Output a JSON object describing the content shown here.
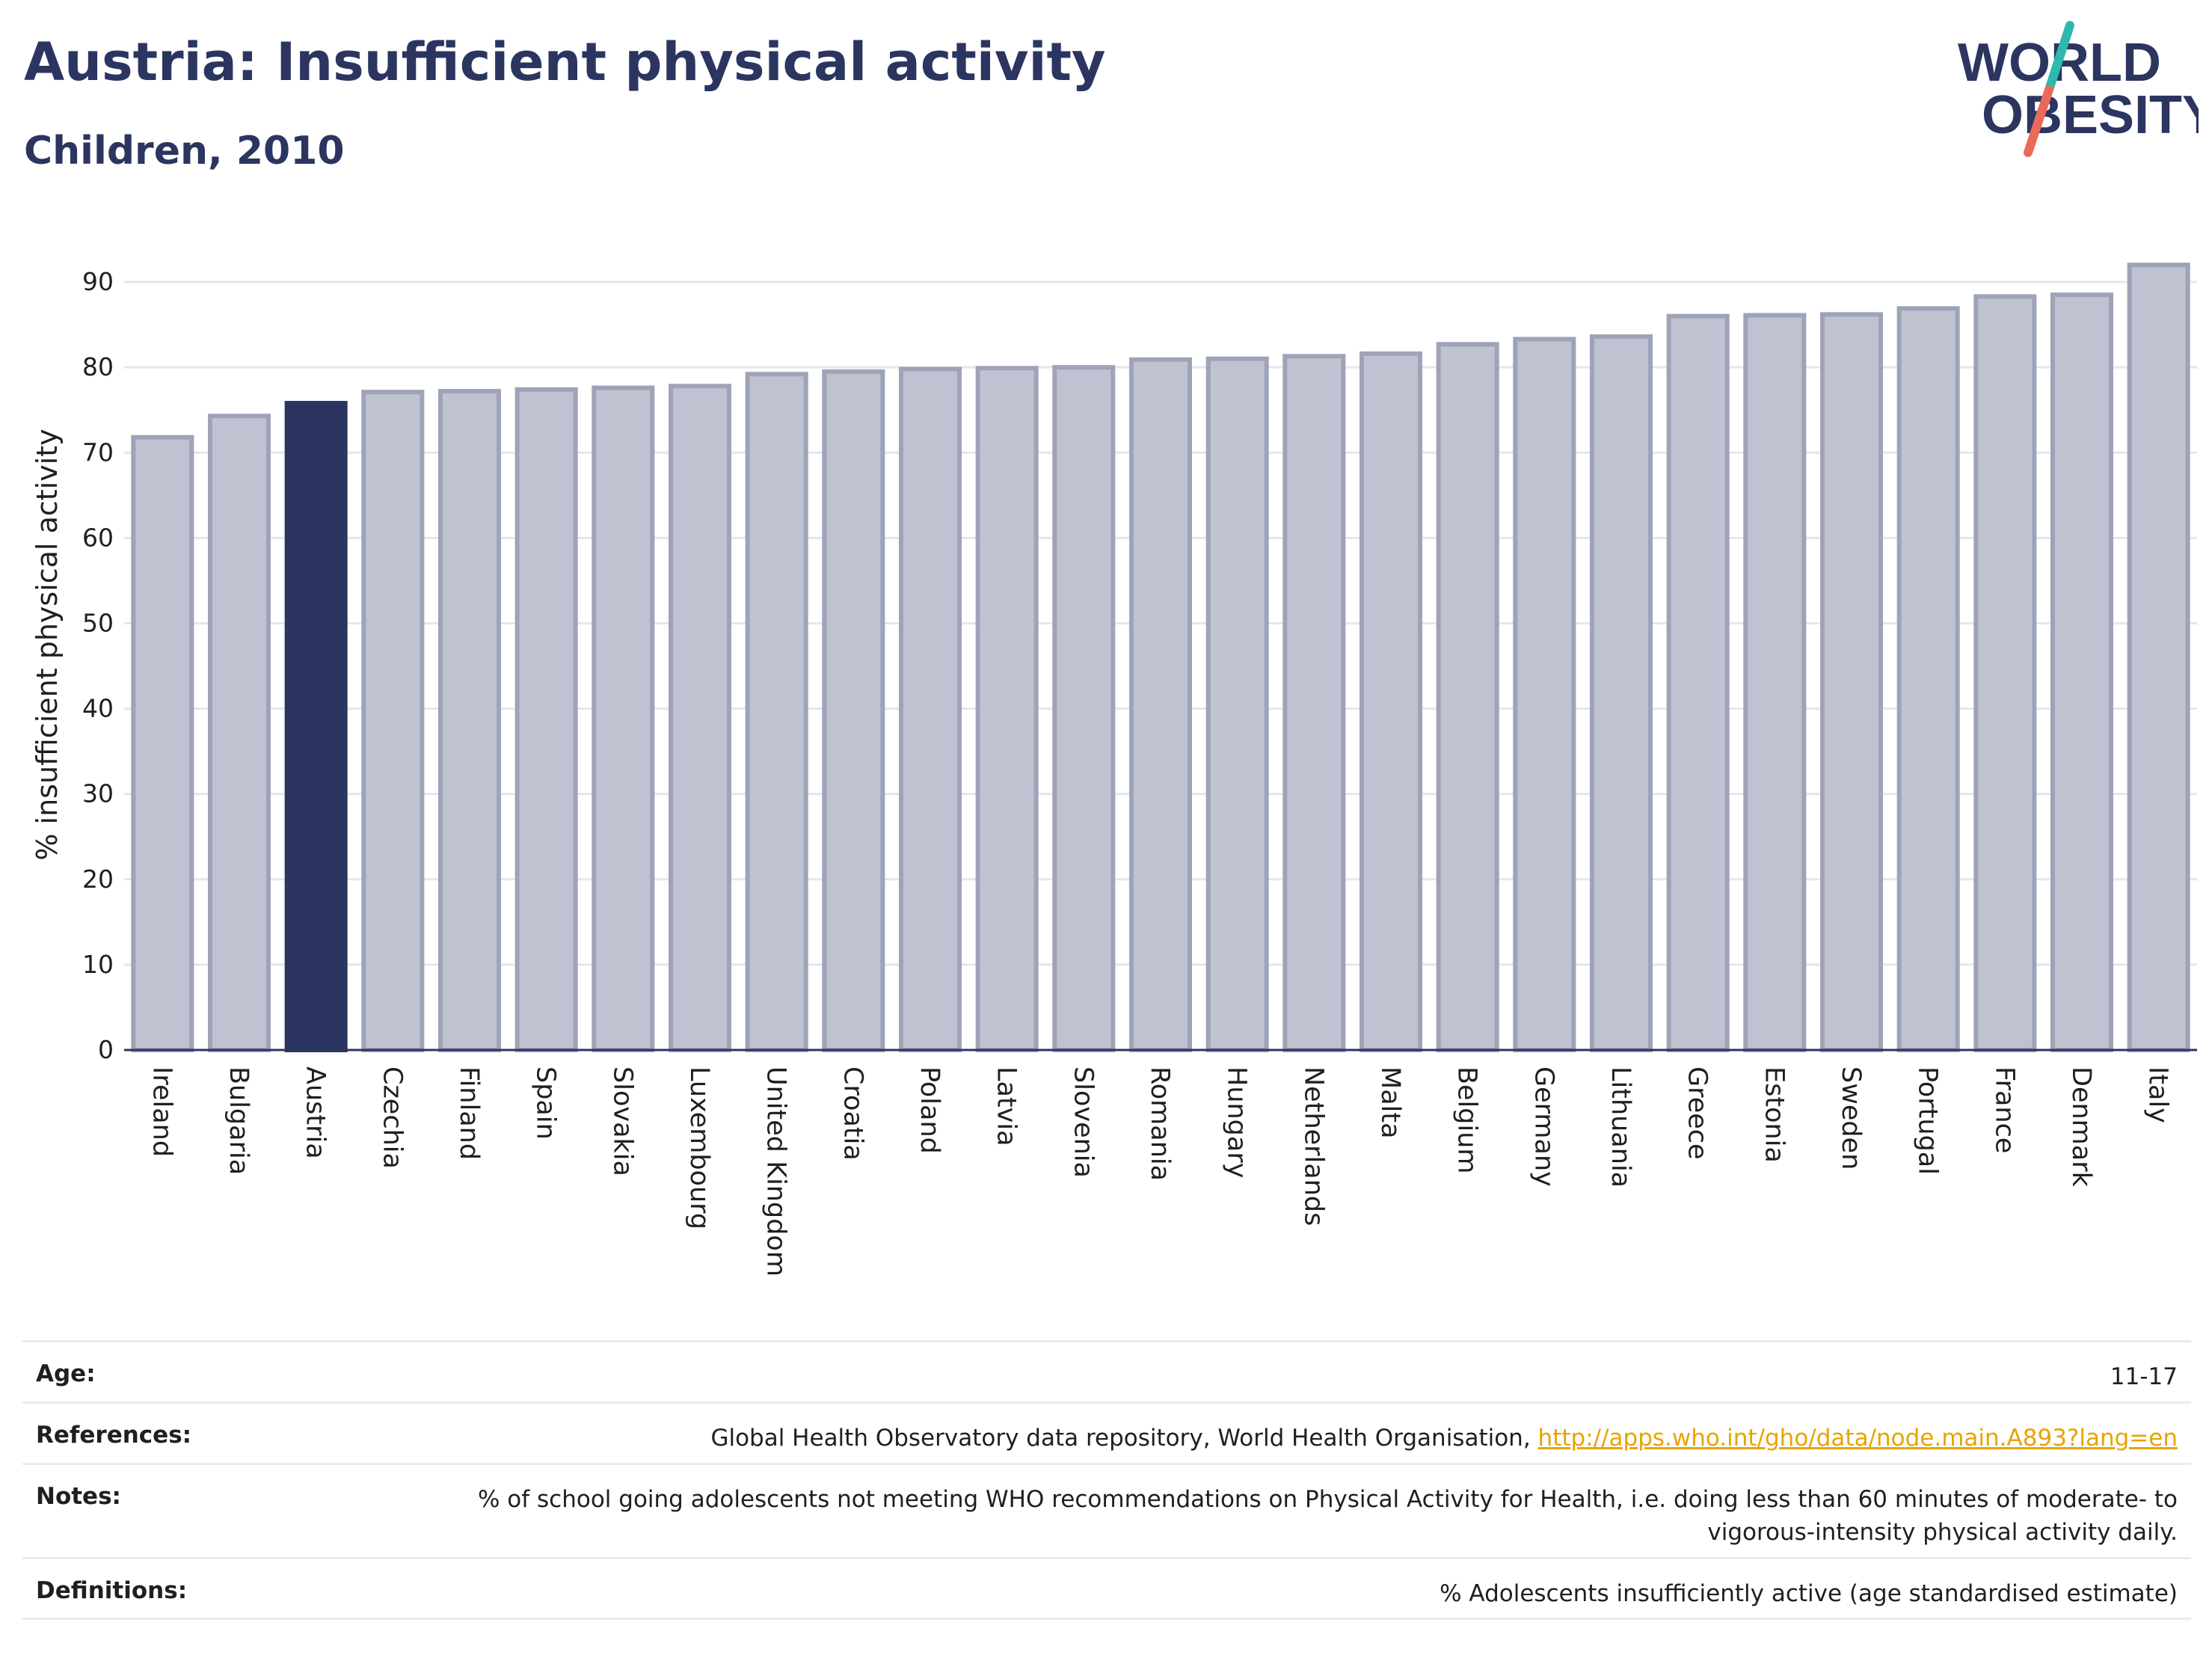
{
  "header": {
    "title": "Austria: Insufficient physical activity",
    "subtitle": "Children, 2010"
  },
  "logo": {
    "line1": "WORLD",
    "line2": "OBESITY"
  },
  "colors": {
    "highlight": "#2b3560",
    "bar_fill": "#bfc2d0",
    "bar_stroke": "#9ea3b8",
    "grid": "#e6e7ec",
    "logo_text": "#2b3560",
    "logo_teal": "#2fb8ad",
    "logo_coral": "#ea6a5a"
  },
  "chart_data": {
    "type": "bar",
    "ylabel": "% insufficient physical activity",
    "xlabel": "",
    "ylim": [
      0,
      95
    ],
    "yticks": [
      0,
      10,
      20,
      30,
      40,
      50,
      60,
      70,
      80,
      90
    ],
    "highlight": "Austria",
    "grid": true,
    "categories": [
      "Ireland",
      "Bulgaria",
      "Austria",
      "Czechia",
      "Finland",
      "Spain",
      "Slovakia",
      "Luxembourg",
      "United Kingdom",
      "Croatia",
      "Poland",
      "Latvia",
      "Slovenia",
      "Romania",
      "Hungary",
      "Netherlands",
      "Malta",
      "Belgium",
      "Germany",
      "Lithuania",
      "Greece",
      "Estonia",
      "Sweden",
      "Portugal",
      "France",
      "Denmark",
      "Italy"
    ],
    "values": [
      71.8,
      74.3,
      75.8,
      77.1,
      77.2,
      77.4,
      77.6,
      77.8,
      79.2,
      79.5,
      79.8,
      79.9,
      80.0,
      80.9,
      81.0,
      81.3,
      81.6,
      82.7,
      83.3,
      83.6,
      86.0,
      86.1,
      86.2,
      86.9,
      88.3,
      88.5,
      92.0
    ]
  },
  "info": {
    "age_label": "Age:",
    "age_value": "11-17",
    "references_label": "References:",
    "references_text": "Global Health Observatory data repository, World Health Organisation,",
    "references_link": "http://apps.who.int/gho/data/node.main.A893?lang=en",
    "notes_label": "Notes:",
    "notes_value": "% of school going adolescents not meeting WHO recommendations on Physical Activity for Health, i.e. doing less than 60 minutes of moderate- to vigorous-intensity physical activity daily.",
    "definitions_label": "Definitions:",
    "definitions_value": "% Adolescents insufficiently active (age standardised estimate)"
  }
}
